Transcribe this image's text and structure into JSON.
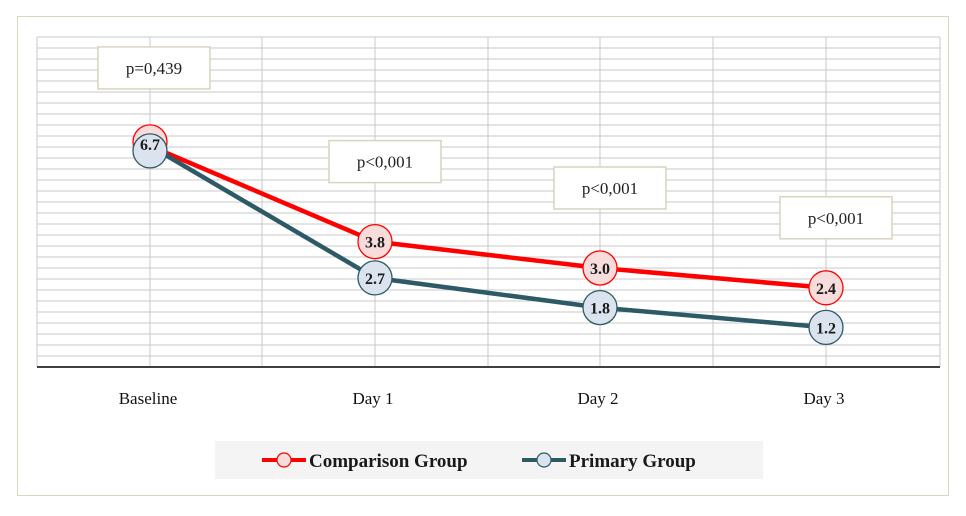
{
  "chart_data": {
    "type": "line",
    "categories": [
      "Baseline",
      "Day 1",
      "Day 2",
      "Day 3"
    ],
    "series": [
      {
        "name": "Comparison Group",
        "values": [
          6.7,
          3.8,
          3.0,
          2.4
        ],
        "color": "#ff0000",
        "marker_fill": "#f8dcdc"
      },
      {
        "name": "Primary Group",
        "values": [
          6.7,
          2.7,
          1.8,
          1.2
        ],
        "color": "#2d5a66",
        "marker_fill": "#dbe4ee"
      }
    ],
    "data_labels": [
      {
        "category": "Baseline",
        "text": "6.7"
      },
      {
        "category": "Day 1",
        "comparison": "3.8",
        "primary": "2.7"
      },
      {
        "category": "Day 2",
        "comparison": "3.0",
        "primary": "1.8"
      },
      {
        "category": "Day 3",
        "comparison": "2.4",
        "primary": "1.2"
      }
    ],
    "p_values": [
      "p=0,439",
      "p<0,001",
      "p<0,001",
      "p<0,001"
    ],
    "ylim": [
      0,
      10
    ],
    "grid": true,
    "legend_position": "bottom"
  }
}
